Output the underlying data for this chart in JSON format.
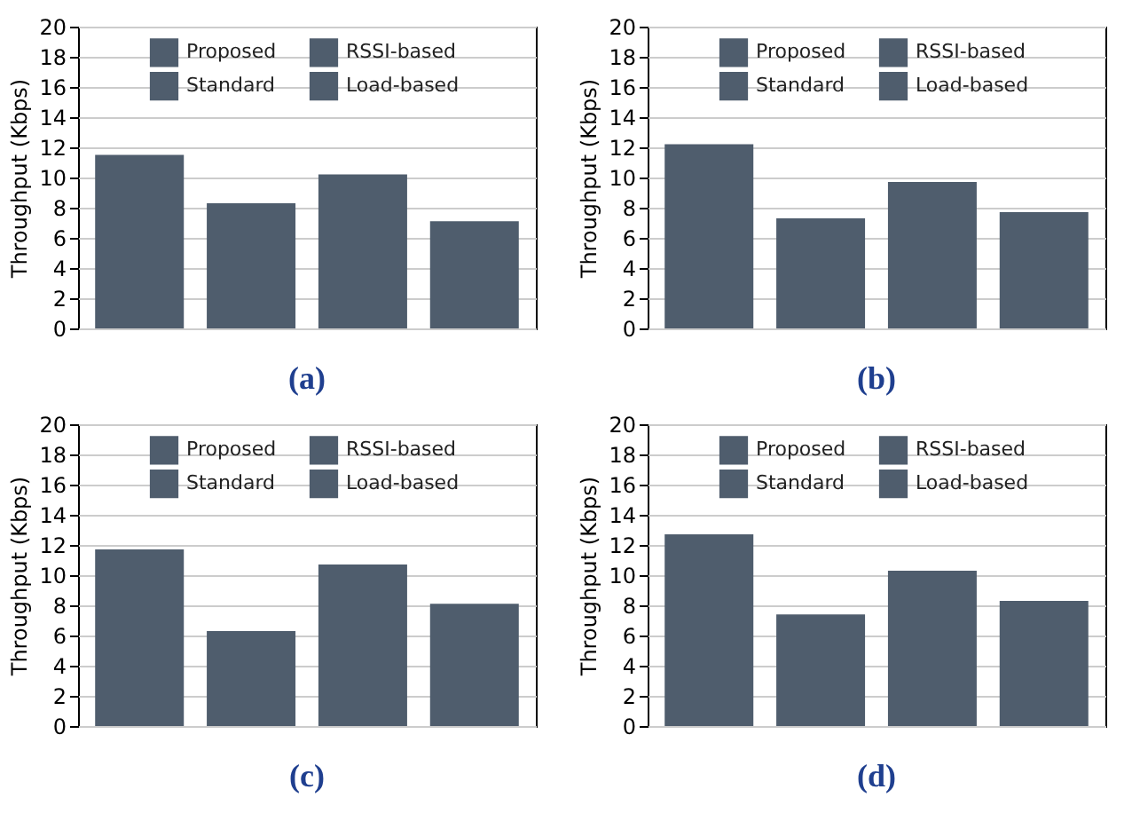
{
  "chart_data": [
    {
      "type": "bar",
      "title": "(a)",
      "categories": [
        null,
        null,
        null,
        null
      ],
      "ylabel": "Throughput (Kbps)",
      "ylim": [
        0,
        20
      ],
      "yticks": [
        0,
        2,
        4,
        6,
        8,
        10,
        12,
        14,
        16,
        18,
        20
      ],
      "grid": "y",
      "legend": "top",
      "tick_labels": "y",
      "series": [
        {
          "name": "Proposed",
          "color": "#4f5d6d",
          "values": [
            11.5,
            null,
            null,
            null
          ]
        },
        {
          "name": "Standard",
          "color": "#4f5d6d",
          "values": [
            null,
            8.3,
            null,
            null
          ]
        },
        {
          "name": "RSSI-based",
          "color": "#4f5d6d",
          "values": [
            null,
            null,
            10.2,
            null
          ]
        },
        {
          "name": "Load-based",
          "color": "#4f5d6d",
          "values": [
            null,
            null,
            null,
            7.1
          ]
        }
      ]
    },
    {
      "type": "bar",
      "title": "(b)",
      "categories": [
        null,
        null,
        null,
        null
      ],
      "ylabel": "Throughput (Kbps)",
      "ylim": [
        0,
        20
      ],
      "yticks": [
        0,
        2,
        4,
        6,
        8,
        10,
        12,
        14,
        16,
        18,
        20
      ],
      "grid": "y",
      "legend": "top",
      "tick_labels": "y",
      "series": [
        {
          "name": "Proposed",
          "color": "#4f5d6d",
          "values": [
            12.2,
            null,
            null,
            null
          ]
        },
        {
          "name": "Standard",
          "color": "#4f5d6d",
          "values": [
            null,
            7.3,
            null,
            null
          ]
        },
        {
          "name": "RSSI-based",
          "color": "#4f5d6d",
          "values": [
            null,
            null,
            9.7,
            null
          ]
        },
        {
          "name": "Load-based",
          "color": "#4f5d6d",
          "values": [
            null,
            null,
            null,
            7.7
          ]
        }
      ]
    },
    {
      "type": "bar",
      "title": "(c)",
      "categories": [
        null,
        null,
        null,
        null
      ],
      "ylabel": "Throughput (Kbps)",
      "ylim": [
        0,
        20
      ],
      "yticks": [
        0,
        2,
        4,
        6,
        8,
        10,
        12,
        14,
        16,
        18,
        20
      ],
      "grid": "y",
      "legend": "top",
      "tick_labels": "y",
      "series": [
        {
          "name": "Proposed",
          "color": "#4f5d6d",
          "values": [
            11.7,
            null,
            null,
            null
          ]
        },
        {
          "name": "Standard",
          "color": "#4f5d6d",
          "values": [
            null,
            6.3,
            null,
            null
          ]
        },
        {
          "name": "RSSI-based",
          "color": "#4f5d6d",
          "values": [
            null,
            null,
            10.7,
            null
          ]
        },
        {
          "name": "Load-based",
          "color": "#4f5d6d",
          "values": [
            null,
            null,
            null,
            8.1
          ]
        }
      ]
    },
    {
      "type": "bar",
      "title": "(d)",
      "categories": [
        null,
        null,
        null,
        null
      ],
      "ylabel": "Throughput (Kbps)",
      "ylim": [
        0,
        20
      ],
      "yticks": [
        0,
        2,
        4,
        6,
        8,
        10,
        12,
        14,
        16,
        18,
        20
      ],
      "grid": "y",
      "legend": "top",
      "tick_labels": "y",
      "series": [
        {
          "name": "Proposed",
          "color": "#4f5d6d",
          "values": [
            12.7,
            null,
            null,
            null
          ]
        },
        {
          "name": "Standard",
          "color": "#4f5d6d",
          "values": [
            null,
            7.4,
            null,
            null
          ]
        },
        {
          "name": "RSSI-based",
          "color": "#4f5d6d",
          "values": [
            null,
            null,
            10.3,
            null
          ]
        },
        {
          "name": "Load-based",
          "color": "#4f5d6d",
          "values": [
            null,
            null,
            null,
            8.3
          ]
        }
      ]
    }
  ]
}
